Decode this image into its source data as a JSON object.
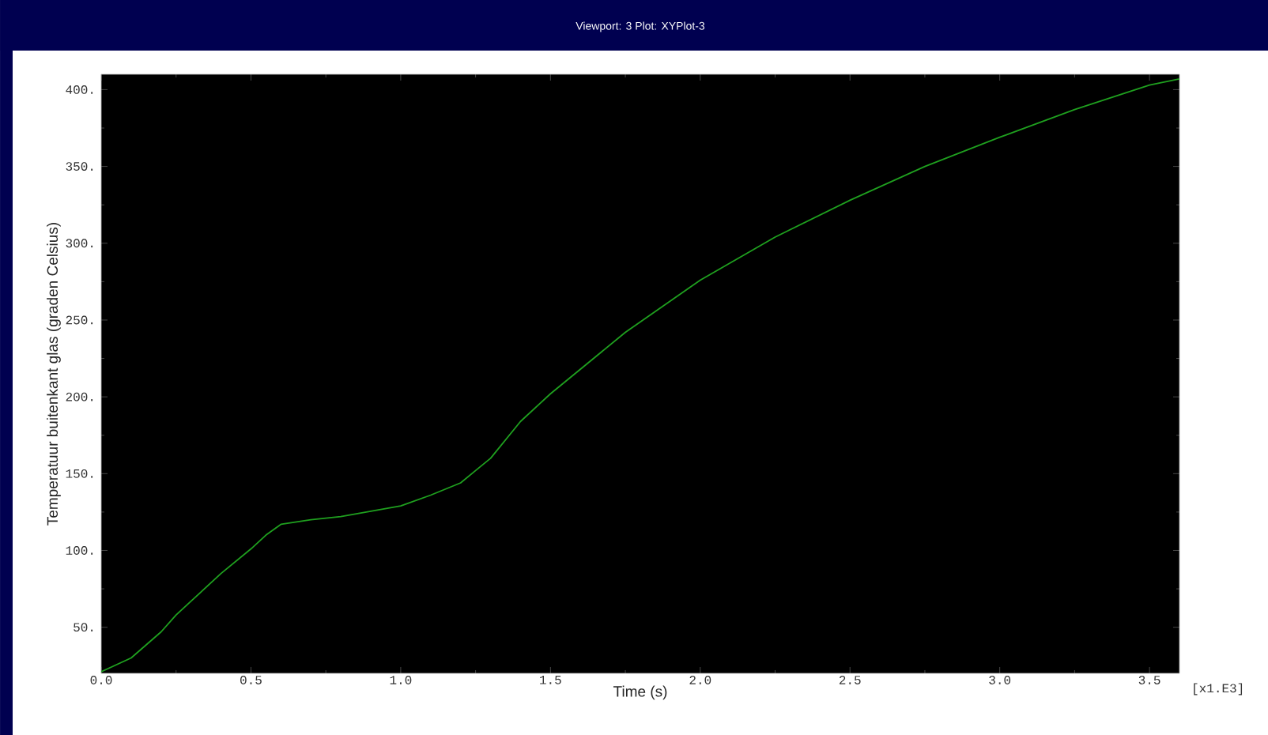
{
  "chart_data": {
    "type": "line",
    "title": "Viewport: 3    Plot: XYPlot-3",
    "xlabel": "Time (s)",
    "ylabel": "Temperatuur buitenkant glas (graden Celsius)",
    "annotations": [
      "[x1.E3]"
    ],
    "x": [
      0,
      0.1,
      0.2,
      0.25,
      0.3,
      0.4,
      0.5,
      0.55,
      0.6,
      0.7,
      0.8,
      1.0,
      1.1,
      1.2,
      1.25,
      1.3,
      1.4,
      1.5,
      1.75,
      2.0,
      2.25,
      2.5,
      2.75,
      3.0,
      3.25,
      3.5,
      3.6
    ],
    "values": [
      21,
      30,
      47,
      58,
      67,
      85,
      101,
      110,
      117,
      120,
      122,
      129,
      136,
      144,
      152,
      160,
      184,
      202,
      242,
      276,
      304,
      328,
      350,
      369,
      387,
      403,
      407
    ],
    "color": "#1fa01f",
    "xlim": [
      0,
      3.6
    ],
    "ylim": [
      20,
      410
    ],
    "xticks": [
      {
        "value": 0,
        "label": "0.0"
      },
      {
        "value": 0.5,
        "label": "0.5"
      },
      {
        "value": 1.0,
        "label": "1.0"
      },
      {
        "value": 1.5,
        "label": "1.5"
      },
      {
        "value": 2.0,
        "label": "2.0"
      },
      {
        "value": 2.5,
        "label": "2.5"
      },
      {
        "value": 3.0,
        "label": "3.0"
      },
      {
        "value": 3.5,
        "label": "3.5"
      }
    ],
    "yticks": [
      {
        "value": 50,
        "label": "50."
      },
      {
        "value": 100,
        "label": "100."
      },
      {
        "value": 150,
        "label": "150."
      },
      {
        "value": 200,
        "label": "200."
      },
      {
        "value": 250,
        "label": "250."
      },
      {
        "value": 300,
        "label": "300."
      },
      {
        "value": 350,
        "label": "350."
      },
      {
        "value": 400,
        "label": "400."
      }
    ]
  }
}
